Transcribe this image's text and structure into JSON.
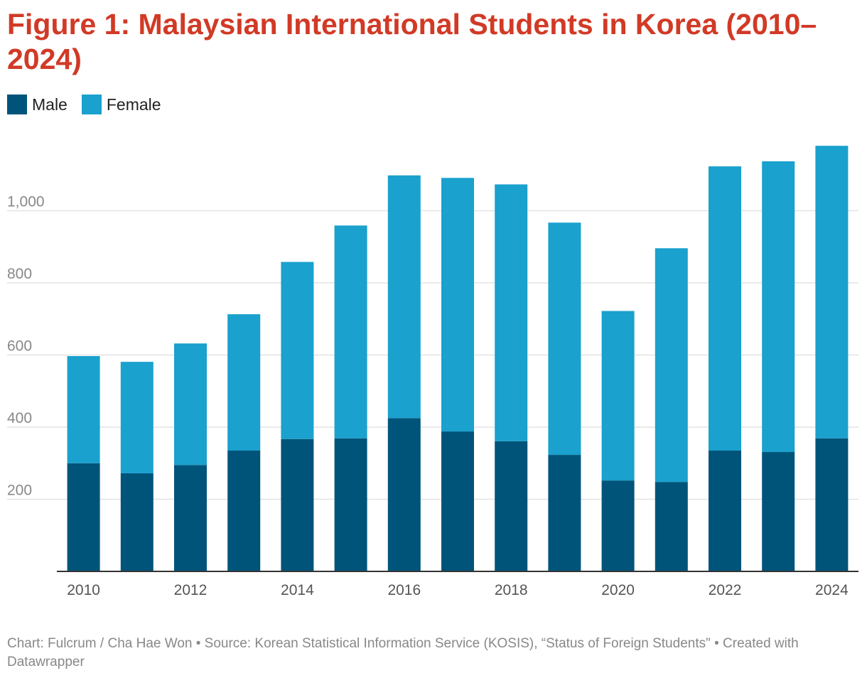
{
  "title": "Figure 1: Malaysian International Students in Korea (2010–2024)",
  "footer": {
    "text": "Chart: Fulcrum / Cha Hae Won • Source: Korean Statistical Information Service (KOSIS), “Status of Foreign Students\" • Created with Datawrapper"
  },
  "chart_data": {
    "type": "bar",
    "stacked": true,
    "categories": [
      "2010",
      "2011",
      "2012",
      "2013",
      "2014",
      "2015",
      "2016",
      "2017",
      "2018",
      "2019",
      "2020",
      "2021",
      "2022",
      "2023",
      "2024"
    ],
    "x_tick_labels": [
      "2010",
      "2012",
      "2014",
      "2016",
      "2018",
      "2020",
      "2022",
      "2024"
    ],
    "series": [
      {
        "name": "Male",
        "color": "#00547a",
        "values": [
          300,
          272,
          295,
          335,
          367,
          369,
          425,
          388,
          361,
          323,
          252,
          248,
          335,
          331,
          369
        ]
      },
      {
        "name": "Female",
        "color": "#1aa1cd",
        "values": [
          297,
          309,
          337,
          378,
          491,
          590,
          673,
          703,
          712,
          644,
          470,
          648,
          788,
          806,
          811
        ]
      }
    ],
    "y_ticks": [
      200,
      400,
      600,
      800,
      1000
    ],
    "y_tick_labels": [
      "200",
      "400",
      "600",
      "800",
      "1,000"
    ],
    "ylim": [
      0,
      1200
    ],
    "grid": true,
    "legend": "top-left",
    "xlabel": "",
    "ylabel": ""
  }
}
